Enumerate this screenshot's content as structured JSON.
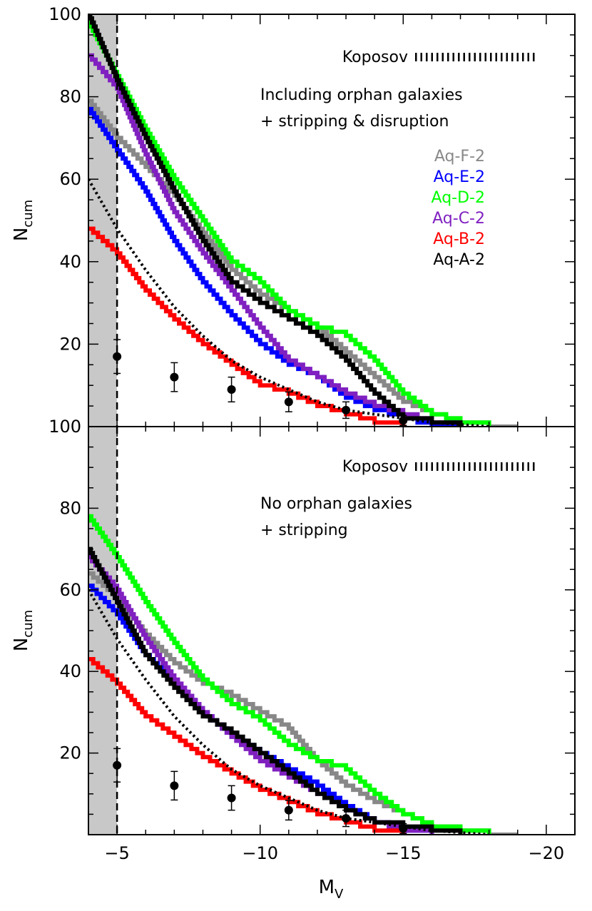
{
  "chart_data": [
    {
      "type": "line",
      "panel": "top",
      "annotation_lines": [
        "Including orphan galaxies",
        "+ stripping & disruption"
      ],
      "ylabel": "N",
      "ylabel_sub": "cum",
      "xlabel": "",
      "xlim": [
        -4,
        -21
      ],
      "ylim": [
        0,
        100
      ],
      "x_ticks": [
        -5,
        -10,
        -15,
        -20
      ],
      "x_tick_labels": [
        "",
        "",
        "",
        ""
      ],
      "y_ticks": [
        20,
        40,
        60,
        80,
        100
      ],
      "y_tick_labels": [
        "20",
        "40",
        "60",
        "80",
        "100"
      ],
      "shaded_region": [
        -4,
        -5
      ],
      "dashed_vline": -5,
      "legend_position": "top-right",
      "series": [
        {
          "name": "Aq-F-2",
          "color": "#888888",
          "x": [
            -4,
            -5,
            -6,
            -7,
            -8,
            -9,
            -10,
            -11,
            -12,
            -13,
            -14,
            -15,
            -16,
            -17,
            -18,
            -19
          ],
          "y": [
            79,
            70,
            63,
            56,
            47,
            38,
            32,
            28,
            24,
            18,
            12,
            6,
            3,
            1,
            0,
            0
          ]
        },
        {
          "name": "Aq-E-2",
          "color": "#0000ff",
          "x": [
            -4,
            -5,
            -6,
            -7,
            -8,
            -9,
            -10,
            -11,
            -12,
            -13,
            -14,
            -15,
            -16,
            -17
          ],
          "y": [
            77,
            67,
            57,
            45,
            35,
            27,
            20,
            15,
            12,
            7,
            4,
            2,
            0,
            0
          ]
        },
        {
          "name": "Aq-D-2",
          "color": "#00ff00",
          "x": [
            -4,
            -5,
            -6,
            -7,
            -8,
            -9,
            -10,
            -11,
            -12,
            -13,
            -14,
            -15,
            -16,
            -17,
            -18
          ],
          "y": [
            98,
            85,
            72,
            60,
            50,
            40,
            35,
            28,
            24,
            22,
            16,
            8,
            3,
            1,
            0
          ]
        },
        {
          "name": "Aq-C-2",
          "color": "#8020c0",
          "x": [
            -4,
            -5,
            -6,
            -7,
            -8,
            -9,
            -10,
            -11,
            -12,
            -13,
            -14,
            -15,
            -16,
            -17
          ],
          "y": [
            90,
            82,
            66,
            52,
            42,
            33,
            24,
            16,
            12,
            8,
            5,
            3,
            1,
            0
          ]
        },
        {
          "name": "Aq-B-2",
          "color": "#ff0000",
          "x": [
            -4,
            -5,
            -6,
            -7,
            -8,
            -9,
            -10,
            -11,
            -12,
            -13,
            -14,
            -15
          ],
          "y": [
            48,
            42,
            33,
            26,
            20,
            15,
            10,
            8,
            5,
            3,
            1,
            0
          ]
        },
        {
          "name": "Aq-A-2",
          "color": "#000000",
          "x": [
            -4,
            -5,
            -6,
            -7,
            -8,
            -9,
            -10,
            -11,
            -12,
            -13,
            -14,
            -15,
            -16,
            -17
          ],
          "y": [
            100,
            84,
            70,
            57,
            45,
            35,
            30,
            26,
            22,
            16,
            8,
            2,
            1,
            0
          ]
        },
        {
          "name": "Koposov",
          "color": "#000000",
          "style": "dotted",
          "x": [
            -4,
            -5,
            -6,
            -7,
            -8,
            -9,
            -10,
            -11,
            -12,
            -13,
            -14,
            -15,
            -16,
            -17,
            -18
          ],
          "y": [
            60,
            48,
            38,
            29,
            22,
            16,
            12,
            9,
            6,
            4,
            3,
            2,
            1,
            0.5,
            0
          ]
        }
      ],
      "observations": {
        "x": [
          -5,
          -7,
          -9,
          -11,
          -13,
          -15
        ],
        "y": [
          17,
          12,
          9,
          6,
          4,
          1.5
        ],
        "yerr": [
          4.1,
          3.5,
          3,
          2.4,
          2,
          1.2
        ]
      }
    },
    {
      "type": "line",
      "panel": "bottom",
      "annotation_lines": [
        "No orphan galaxies",
        "+ stripping"
      ],
      "ylabel": "N",
      "ylabel_sub": "cum",
      "xlabel": "M",
      "xlabel_sub": "V",
      "xlim": [
        -4,
        -21
      ],
      "ylim": [
        0,
        100
      ],
      "x_ticks": [
        -5,
        -10,
        -15,
        -20
      ],
      "x_tick_labels": [
        "−5",
        "−10",
        "−15",
        "−20"
      ],
      "y_ticks": [
        20,
        40,
        60,
        80,
        100
      ],
      "y_tick_labels": [
        "20",
        "40",
        "60",
        "80",
        "100"
      ],
      "shaded_region": [
        -4,
        -5
      ],
      "dashed_vline": -5,
      "series": [
        {
          "name": "Aq-F-2",
          "color": "#888888",
          "x": [
            -4,
            -5,
            -6,
            -7,
            -8,
            -9,
            -10,
            -11,
            -12,
            -13,
            -14,
            -15,
            -16,
            -17,
            -18,
            -19
          ],
          "y": [
            64,
            58,
            49,
            42,
            37,
            34,
            30,
            26,
            18,
            12,
            8,
            5,
            2,
            1,
            0,
            0
          ]
        },
        {
          "name": "Aq-E-2",
          "color": "#0000ff",
          "x": [
            -4,
            -5,
            -6,
            -7,
            -8,
            -9,
            -10,
            -11,
            -12,
            -13,
            -14,
            -15,
            -16
          ],
          "y": [
            61,
            54,
            44,
            37,
            30,
            24,
            20,
            16,
            12,
            7,
            3,
            1,
            0
          ]
        },
        {
          "name": "Aq-D-2",
          "color": "#00ff00",
          "x": [
            -4,
            -5,
            -6,
            -7,
            -8,
            -9,
            -10,
            -11,
            -12,
            -13,
            -14,
            -15,
            -16,
            -17,
            -18
          ],
          "y": [
            78,
            68,
            57,
            47,
            38,
            32,
            28,
            22,
            18,
            16,
            10,
            5,
            2,
            1,
            0
          ]
        },
        {
          "name": "Aq-C-2",
          "color": "#8020c0",
          "x": [
            -4,
            -5,
            -6,
            -7,
            -8,
            -9,
            -10,
            -11,
            -12,
            -13,
            -14,
            -15,
            -16
          ],
          "y": [
            68,
            60,
            48,
            38,
            30,
            24,
            18,
            14,
            10,
            6,
            3,
            1,
            0
          ]
        },
        {
          "name": "Aq-B-2",
          "color": "#ff0000",
          "x": [
            -4,
            -5,
            -6,
            -7,
            -8,
            -9,
            -10,
            -11,
            -12,
            -13,
            -14,
            -15
          ],
          "y": [
            43,
            37,
            29,
            24,
            19,
            15,
            11,
            8,
            5,
            3,
            1,
            0
          ]
        },
        {
          "name": "Aq-A-2",
          "color": "#000000",
          "x": [
            -4,
            -5,
            -6,
            -7,
            -8,
            -9,
            -10,
            -11,
            -12,
            -13,
            -14,
            -15,
            -16,
            -17
          ],
          "y": [
            70,
            57,
            44,
            36,
            29,
            25,
            20,
            15,
            10,
            6,
            3,
            2,
            1,
            0
          ]
        },
        {
          "name": "Koposov",
          "color": "#000000",
          "style": "dotted",
          "x": [
            -4,
            -5,
            -6,
            -7,
            -8,
            -9,
            -10,
            -11,
            -12,
            -13,
            -14,
            -15,
            -16,
            -17,
            -18
          ],
          "y": [
            60,
            48,
            38,
            29,
            22,
            16,
            12,
            9,
            6,
            4,
            3,
            2,
            1,
            0.5,
            0
          ]
        }
      ],
      "observations": {
        "x": [
          -5,
          -7,
          -9,
          -11,
          -13,
          -15
        ],
        "y": [
          17,
          12,
          9,
          6,
          4,
          1.5
        ],
        "yerr": [
          4.1,
          3.5,
          3,
          2.4,
          2,
          1.2
        ]
      }
    }
  ],
  "legend": {
    "koposov_label": "Koposov",
    "entries": [
      {
        "name": "Aq-F-2",
        "color": "#888888"
      },
      {
        "name": "Aq-E-2",
        "color": "#0000ff"
      },
      {
        "name": "Aq-D-2",
        "color": "#00ff00"
      },
      {
        "name": "Aq-C-2",
        "color": "#8020c0"
      },
      {
        "name": "Aq-B-2",
        "color": "#ff0000"
      },
      {
        "name": "Aq-A-2",
        "color": "#000000"
      }
    ]
  }
}
